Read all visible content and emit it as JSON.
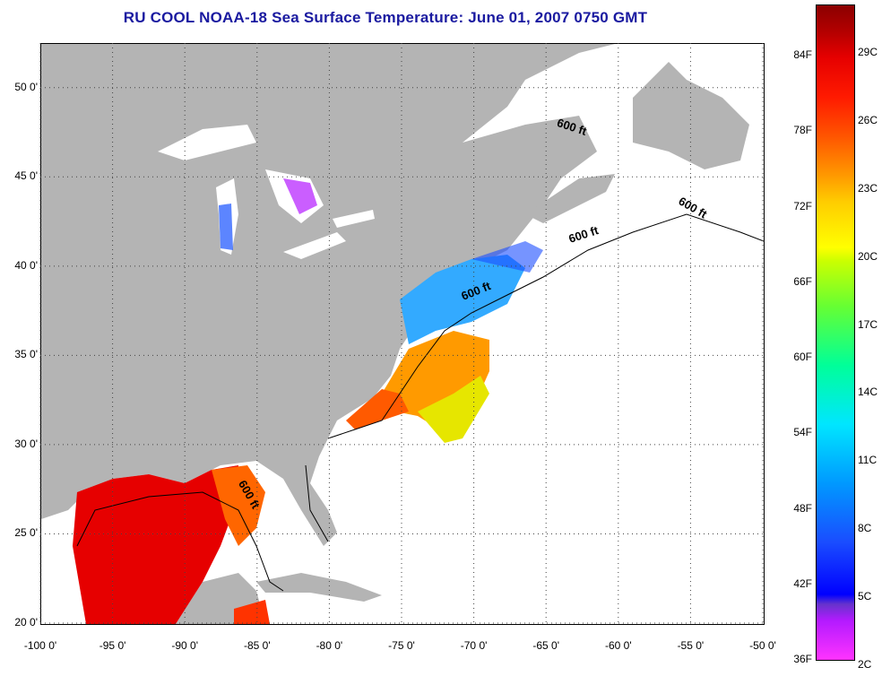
{
  "title": "RU COOL  NOAA-18  Sea Surface Temperature:  June 01, 2007 0750 GMT",
  "map": {
    "lat_labels": [
      "50 0'",
      "45 0'",
      "40 0'",
      "35 0'",
      "30 0'",
      "25 0'",
      "20 0'"
    ],
    "lat_values": [
      50,
      45,
      40,
      35,
      30,
      25,
      20
    ],
    "lon_labels": [
      "-100 0'",
      "-95 0'",
      "-90 0'",
      "-85 0'",
      "-80 0'",
      "-75 0'",
      "-70 0'",
      "-65 0'",
      "-60 0'",
      "-55 0'",
      "-50 0'"
    ],
    "lon_values": [
      -100,
      -95,
      -90,
      -85,
      -80,
      -75,
      -70,
      -65,
      -60,
      -55,
      -50
    ],
    "lat_range": [
      20,
      52.5
    ],
    "lon_range": [
      -100,
      -50
    ],
    "contour_labels": [
      "600 ft",
      "600 ft",
      "600 ft",
      "600 ft",
      "600 ft"
    ],
    "colors": {
      "land": "#b4b4b4",
      "ocean_nodata": "#ffffff"
    }
  },
  "colorbar": {
    "fahrenheit_labels": [
      "84F",
      "78F",
      "72F",
      "66F",
      "60F",
      "54F",
      "48F",
      "42F",
      "36F"
    ],
    "celsius_labels": [
      "29C",
      "26C",
      "23C",
      "20C",
      "17C",
      "14C",
      "11C",
      "8C",
      "5C",
      "2C"
    ],
    "fahrenheit_values": [
      84,
      78,
      72,
      66,
      60,
      54,
      48,
      42,
      36
    ],
    "celsius_values": [
      29,
      26,
      23,
      20,
      17,
      14,
      11,
      8,
      5,
      2
    ]
  }
}
